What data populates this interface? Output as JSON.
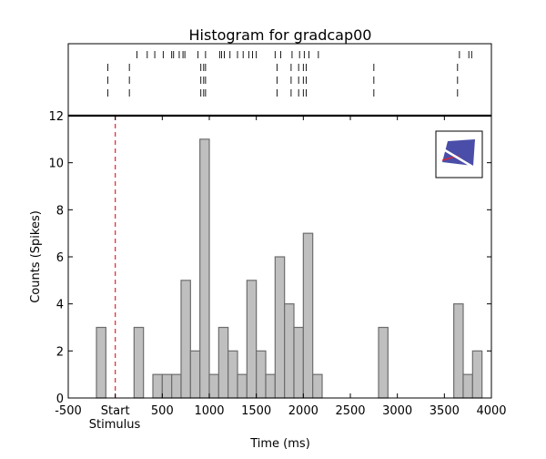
{
  "chart_data": {
    "type": "bar",
    "title": "Histogram for gradcap00",
    "xlabel": "Time (ms)",
    "ylabel": "Counts (Spikes)",
    "xlim": [
      -500,
      4000
    ],
    "ylim": [
      0,
      12
    ],
    "bin_width": 100,
    "x_tick_labels": [
      "-500",
      "Start",
      "500",
      "1000",
      "1500",
      "2000",
      "2500",
      "3000",
      "3500",
      "4000"
    ],
    "x_tick_values": [
      -500,
      0,
      500,
      1000,
      1500,
      2000,
      2500,
      3000,
      3500,
      4000
    ],
    "stimulus_label": "Stimulus",
    "stimulus_marker": {
      "x": 0,
      "color": "#e8202a",
      "style": "dashed"
    },
    "y_ticks": [
      0,
      2,
      4,
      6,
      8,
      10,
      12
    ],
    "bar_fill": "#bfbfbf",
    "bar_edge": "#6d6d6d",
    "bins": [
      {
        "x0": -200,
        "count": 3
      },
      {
        "x0": 200,
        "count": 3
      },
      {
        "x0": 400,
        "count": 1
      },
      {
        "x0": 500,
        "count": 1
      },
      {
        "x0": 600,
        "count": 1
      },
      {
        "x0": 700,
        "count": 5
      },
      {
        "x0": 800,
        "count": 2
      },
      {
        "x0": 900,
        "count": 11
      },
      {
        "x0": 1000,
        "count": 1
      },
      {
        "x0": 1100,
        "count": 3
      },
      {
        "x0": 1200,
        "count": 2
      },
      {
        "x0": 1300,
        "count": 1
      },
      {
        "x0": 1400,
        "count": 5
      },
      {
        "x0": 1500,
        "count": 2
      },
      {
        "x0": 1600,
        "count": 1
      },
      {
        "x0": 1700,
        "count": 6
      },
      {
        "x0": 1800,
        "count": 4
      },
      {
        "x0": 1900,
        "count": 3
      },
      {
        "x0": 2000,
        "count": 7
      },
      {
        "x0": 2100,
        "count": 1
      },
      {
        "x0": 2800,
        "count": 3
      },
      {
        "x0": 3600,
        "count": 4
      },
      {
        "x0": 3700,
        "count": 1
      },
      {
        "x0": 3800,
        "count": 2
      }
    ],
    "raster_trials": [
      [
        230,
        340,
        420,
        510,
        600,
        620,
        680,
        720,
        740,
        880,
        960,
        1110,
        1130,
        1160,
        1220,
        1300,
        1360,
        1420,
        1460,
        1500,
        1700,
        1760,
        1880,
        1960,
        2010,
        2060,
        2160,
        3660,
        3760,
        3790
      ],
      [
        -80,
        150,
        910,
        940,
        960,
        1720,
        1870,
        1950,
        2000,
        2030,
        2750,
        3640
      ],
      [
        -80,
        150,
        910,
        940,
        960,
        1720,
        1870,
        1950,
        2000,
        2030,
        2750,
        3640
      ],
      [
        -80,
        150,
        910,
        940,
        960,
        1720,
        1870,
        1950,
        2000,
        2030,
        2750,
        3640
      ]
    ],
    "inset": {
      "description_icon": "stimulus-thumbnail-icon",
      "fill": "#4a4ea8",
      "accent": "#e8202a"
    }
  }
}
